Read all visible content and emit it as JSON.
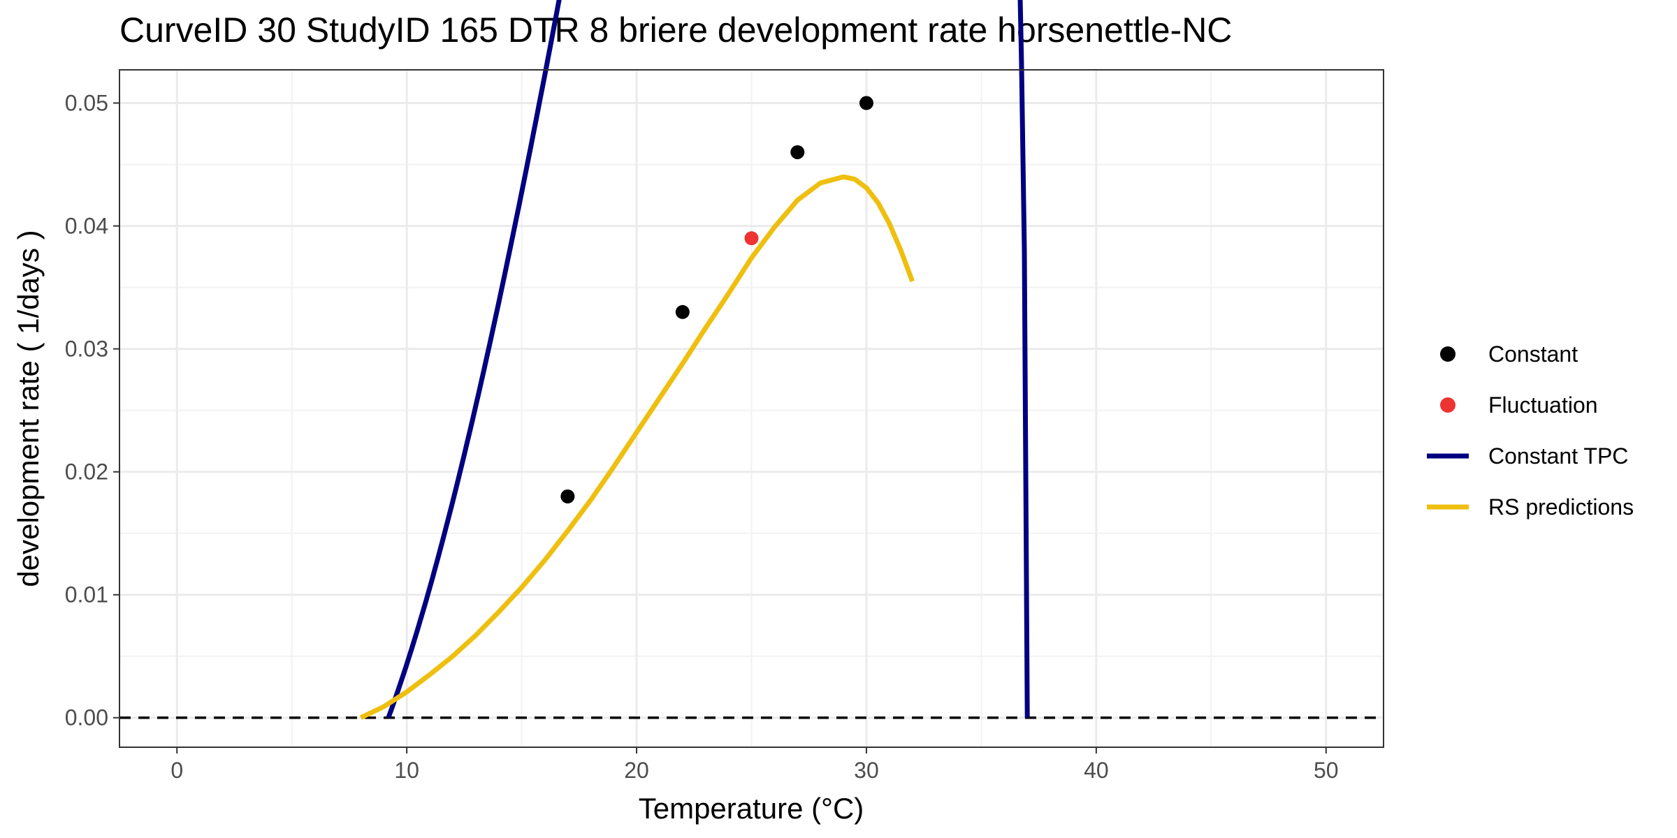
{
  "chart_data": {
    "type": "line",
    "title": "CurveID 30 StudyID 165 DTR 8 briere development rate horsenettle-NC",
    "xlabel": "Temperature (°C)",
    "ylabel": "development rate ( 1/days )",
    "xlim": [
      -2.5,
      52.5
    ],
    "ylim": [
      -0.0024,
      0.0527
    ],
    "x_ticks": [
      0,
      10,
      20,
      30,
      40,
      50
    ],
    "x_tick_labels": [
      "0",
      "10",
      "20",
      "30",
      "40",
      "50"
    ],
    "y_ticks": [
      0,
      0.01,
      0.02,
      0.03,
      0.04,
      0.05
    ],
    "y_tick_labels": [
      "0.00",
      "0.01",
      "0.02",
      "0.03",
      "0.04",
      "0.05"
    ],
    "grid": true,
    "legend_position": "right",
    "reference_line": {
      "y": 0,
      "style": "dashed",
      "color": "#000000"
    },
    "series": [
      {
        "name": "Constant",
        "kind": "points",
        "color": "#000000",
        "x": [
          17,
          22,
          27,
          30
        ],
        "y": [
          0.018,
          0.033,
          0.046,
          0.05
        ]
      },
      {
        "name": "Fluctuation",
        "kind": "points",
        "color": "#ee3333",
        "x": [
          25
        ],
        "y": [
          0.039
        ]
      },
      {
        "name": "Constant TPC",
        "kind": "line",
        "color": "#000080",
        "model": "briere",
        "params": {
          "tmin": 9.2,
          "tmax": 37.0,
          "m": 2.0,
          "a": 0.00010474
        },
        "x_range": [
          9.2,
          37.0
        ]
      },
      {
        "name": "RS predictions",
        "kind": "line",
        "color": "#eebf0f",
        "x": [
          8,
          9,
          10,
          11,
          12,
          13,
          14,
          15,
          16,
          17,
          18,
          19,
          20,
          21,
          22,
          23,
          24,
          25,
          26,
          27,
          28,
          29,
          29.5,
          30,
          30.5,
          31,
          31.5,
          32
        ],
        "y": [
          0.0,
          0.0009,
          0.0021,
          0.0035,
          0.005,
          0.0067,
          0.0086,
          0.0106,
          0.0128,
          0.0152,
          0.0177,
          0.0204,
          0.0232,
          0.026,
          0.0288,
          0.0317,
          0.0345,
          0.0374,
          0.0399,
          0.0421,
          0.0435,
          0.044,
          0.0438,
          0.0431,
          0.0419,
          0.0402,
          0.038,
          0.0355
        ]
      }
    ]
  }
}
